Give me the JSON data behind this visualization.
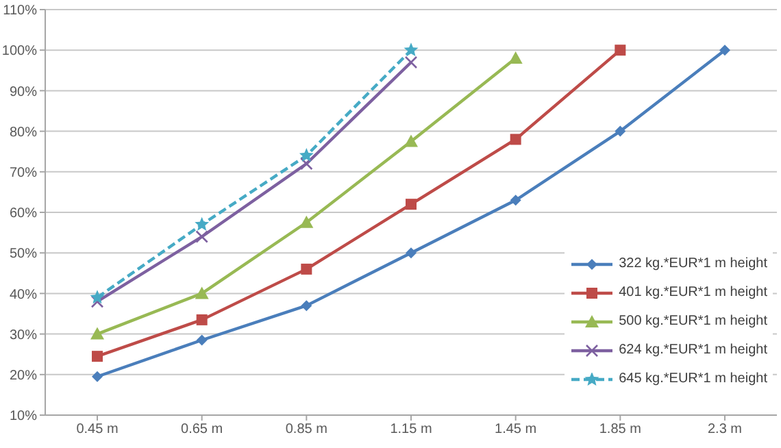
{
  "chart_data": {
    "type": "line",
    "categories": [
      "0.45 m",
      "0.65 m",
      "0.85 m",
      "1.15 m",
      "1.45 m",
      "1.85 m",
      "2.3 m"
    ],
    "series": [
      {
        "name": "322 kg.*EUR*1 m height",
        "color": "#4a7ebb",
        "marker": "diamond",
        "values": [
          19.5,
          28.5,
          37,
          50,
          63,
          80,
          100
        ]
      },
      {
        "name": "401 kg.*EUR*1 m height",
        "color": "#be4b48",
        "marker": "square",
        "values": [
          24.5,
          33.5,
          46,
          62,
          78,
          100,
          null
        ]
      },
      {
        "name": "500 kg.*EUR*1 m height",
        "color": "#98b954",
        "marker": "triangle",
        "values": [
          30,
          40,
          57.5,
          77.5,
          98,
          null,
          null
        ]
      },
      {
        "name": "624 kg.*EUR*1 m height",
        "color": "#7d60a0",
        "marker": "cross",
        "values": [
          38,
          54,
          72,
          97,
          null,
          null,
          null
        ]
      },
      {
        "name": "645 kg.*EUR*1 m height",
        "color": "#46aac5",
        "marker": "star",
        "line_style": "dashed",
        "values": [
          39,
          57,
          74,
          100,
          null,
          null,
          null
        ]
      }
    ],
    "ylim": [
      10,
      110
    ],
    "yticks": [
      {
        "value": 10,
        "label": "10%"
      },
      {
        "value": 20,
        "label": "20%"
      },
      {
        "value": 30,
        "label": "30%"
      },
      {
        "value": 40,
        "label": "40%"
      },
      {
        "value": 50,
        "label": "50%"
      },
      {
        "value": 60,
        "label": "60%"
      },
      {
        "value": 70,
        "label": "70%"
      },
      {
        "value": 80,
        "label": "80%"
      },
      {
        "value": 90,
        "label": "90%"
      },
      {
        "value": 100,
        "label": "100%"
      },
      {
        "value": 110,
        "label": "110%"
      }
    ],
    "grid": "y",
    "legend": "right"
  }
}
